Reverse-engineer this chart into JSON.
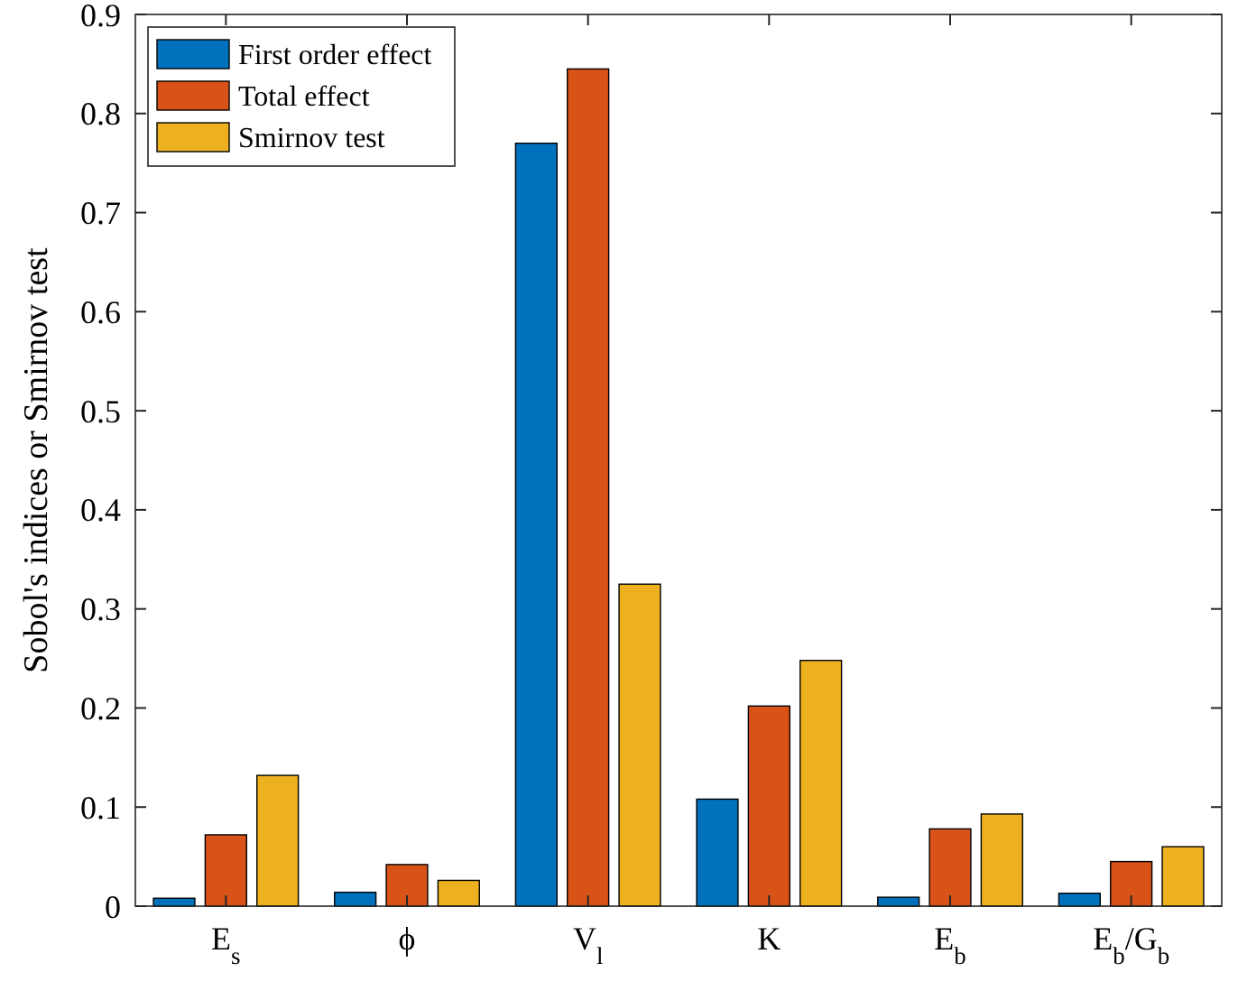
{
  "chart_data": {
    "type": "bar",
    "ylabel": "Sobol's indices or Smirnov test",
    "categories": [
      "E$_{s}$",
      "ϕ",
      "V$_{l}$",
      "K",
      "E$_{b}$",
      "E$_{b}$/G$_{b}$"
    ],
    "series": [
      {
        "name": "First order effect",
        "color": "#0072bd",
        "values": [
          0.008,
          0.014,
          0.77,
          0.108,
          0.009,
          0.013
        ]
      },
      {
        "name": "Total effect",
        "color": "#d95319",
        "values": [
          0.072,
          0.042,
          0.845,
          0.202,
          0.078,
          0.045
        ]
      },
      {
        "name": "Smirnov test",
        "color": "#edb120",
        "values": [
          0.132,
          0.026,
          0.325,
          0.248,
          0.093,
          0.06
        ]
      }
    ],
    "ylim": [
      0,
      0.9
    ],
    "yticks": [
      0,
      0.1,
      0.2,
      0.3,
      0.4,
      0.5,
      0.6,
      0.7,
      0.8,
      0.9
    ],
    "grid": false,
    "legend": "top left"
  }
}
